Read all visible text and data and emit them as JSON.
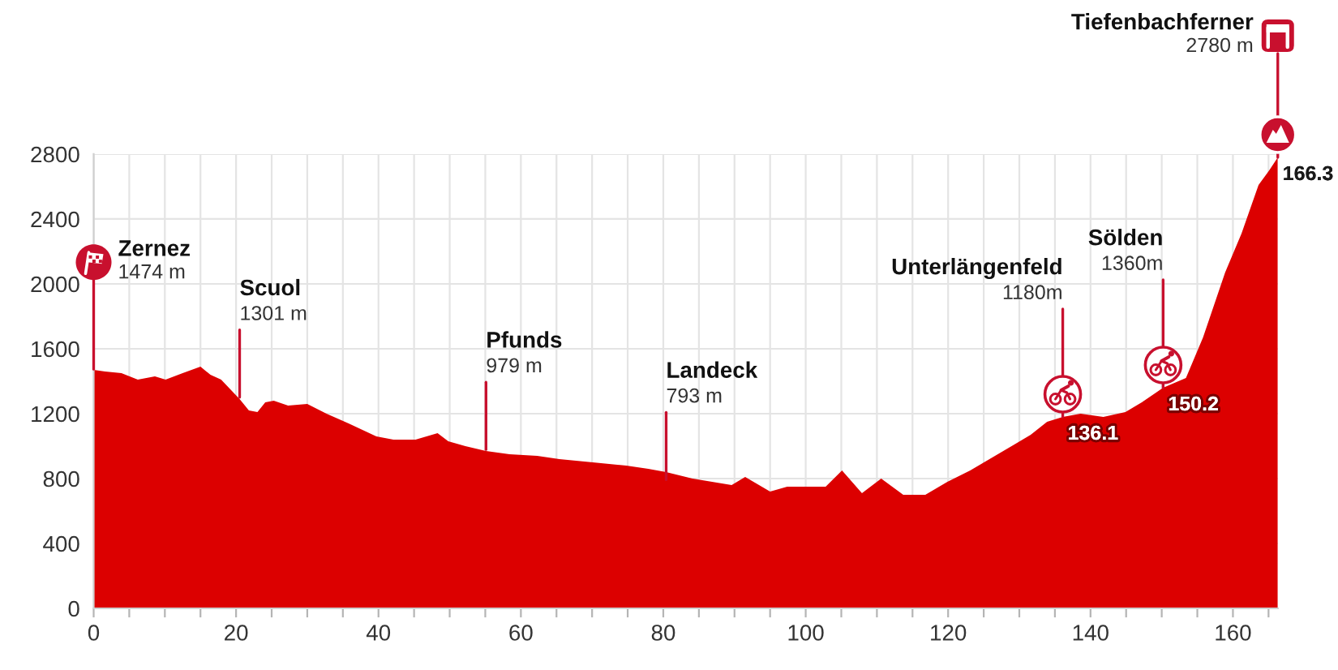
{
  "chart_data": {
    "type": "area",
    "x": [
      0,
      1.6,
      3.9,
      6.2,
      8.6,
      10.1,
      12.5,
      15.0,
      16.4,
      17.9,
      20.5,
      21.8,
      23.0,
      24.1,
      25.3,
      27.3,
      30.0,
      32.7,
      35.8,
      39.7,
      42.1,
      45.2,
      48.3,
      49.8,
      52.2,
      55.1,
      58.4,
      62.3,
      65.4,
      70.1,
      74.8,
      77.9,
      80.4,
      84.1,
      89.6,
      91.5,
      95.0,
      97.4,
      102.8,
      105.1,
      107.9,
      110.6,
      113.7,
      116.8,
      119.9,
      123.1,
      126.2,
      129.3,
      131.6,
      133.9,
      136.1,
      138.6,
      141.8,
      144.9,
      147.2,
      150.2,
      153.4,
      155.8,
      158.9,
      161.2,
      163.6,
      165.1,
      166.3
    ],
    "values": [
      1470,
      1460,
      1450,
      1410,
      1430,
      1410,
      1450,
      1490,
      1440,
      1410,
      1290,
      1220,
      1210,
      1270,
      1280,
      1250,
      1260,
      1200,
      1140,
      1060,
      1040,
      1040,
      1080,
      1030,
      1000,
      970,
      950,
      940,
      920,
      900,
      880,
      860,
      840,
      800,
      760,
      810,
      720,
      750,
      750,
      850,
      710,
      800,
      700,
      700,
      780,
      850,
      930,
      1010,
      1070,
      1150,
      1180,
      1200,
      1180,
      1210,
      1270,
      1360,
      1420,
      1670,
      2070,
      2310,
      2610,
      2700,
      2780
    ],
    "color": "#dc0000",
    "xlim": [
      0,
      166.3
    ],
    "xticks": [
      0,
      {
        "value": 5,
        "label": null
      },
      {
        "value": 10,
        "label": null
      },
      {
        "value": 15,
        "label": null
      },
      20,
      {
        "value": 25,
        "label": null
      },
      {
        "value": 30,
        "label": null
      },
      {
        "value": 35,
        "label": null
      },
      40,
      {
        "value": 45,
        "label": null
      },
      {
        "value": 50,
        "label": null
      },
      {
        "value": 55,
        "label": null
      },
      60,
      {
        "value": 65,
        "label": null
      },
      {
        "value": 70,
        "label": null
      },
      {
        "value": 75,
        "label": null
      },
      80,
      {
        "value": 85,
        "label": null
      },
      {
        "value": 90,
        "label": null
      },
      {
        "value": 95,
        "label": null
      },
      100,
      {
        "value": 105,
        "label": null
      },
      {
        "value": 110,
        "label": null
      },
      {
        "value": 115,
        "label": null
      },
      120,
      {
        "value": 125,
        "label": null
      },
      {
        "value": 130,
        "label": null
      },
      {
        "value": 135,
        "label": null
      },
      140,
      {
        "value": 145,
        "label": null
      },
      {
        "value": 150,
        "label": null
      },
      {
        "value": 155,
        "label": null
      },
      160,
      {
        "value": 165,
        "label": null
      }
    ],
    "ylim": [
      0,
      2800
    ],
    "yticks": [
      0,
      400,
      800,
      1200,
      1600,
      2000,
      2400,
      2800
    ],
    "grid": true,
    "annotations": [
      {
        "text": "Zernez\n1474 m",
        "x": 0,
        "y": 1474
      },
      {
        "text": "Scuol\n1301 m",
        "x": 20.5,
        "y": 1301
      },
      {
        "text": "Pfunds\n979 m",
        "x": 55.1,
        "y": 979
      },
      {
        "text": "Landeck\n793 m",
        "x": 80.4,
        "y": 793
      },
      {
        "text": "Unterlängenfeld\n1180m",
        "x": 136.1,
        "y": 1180
      },
      {
        "text": "Sölden\n1360m",
        "x": 150.2,
        "y": 1360
      },
      {
        "text": "Tiefenbachferner\n2780 m",
        "x": 166.3,
        "y": 2780
      },
      {
        "text": "136.1",
        "x": 136.1,
        "y": 1180
      },
      {
        "text": "150.2",
        "x": 150.2,
        "y": 1360
      },
      {
        "text": "166.3",
        "x": 166.3,
        "y": 2780
      }
    ]
  }
}
